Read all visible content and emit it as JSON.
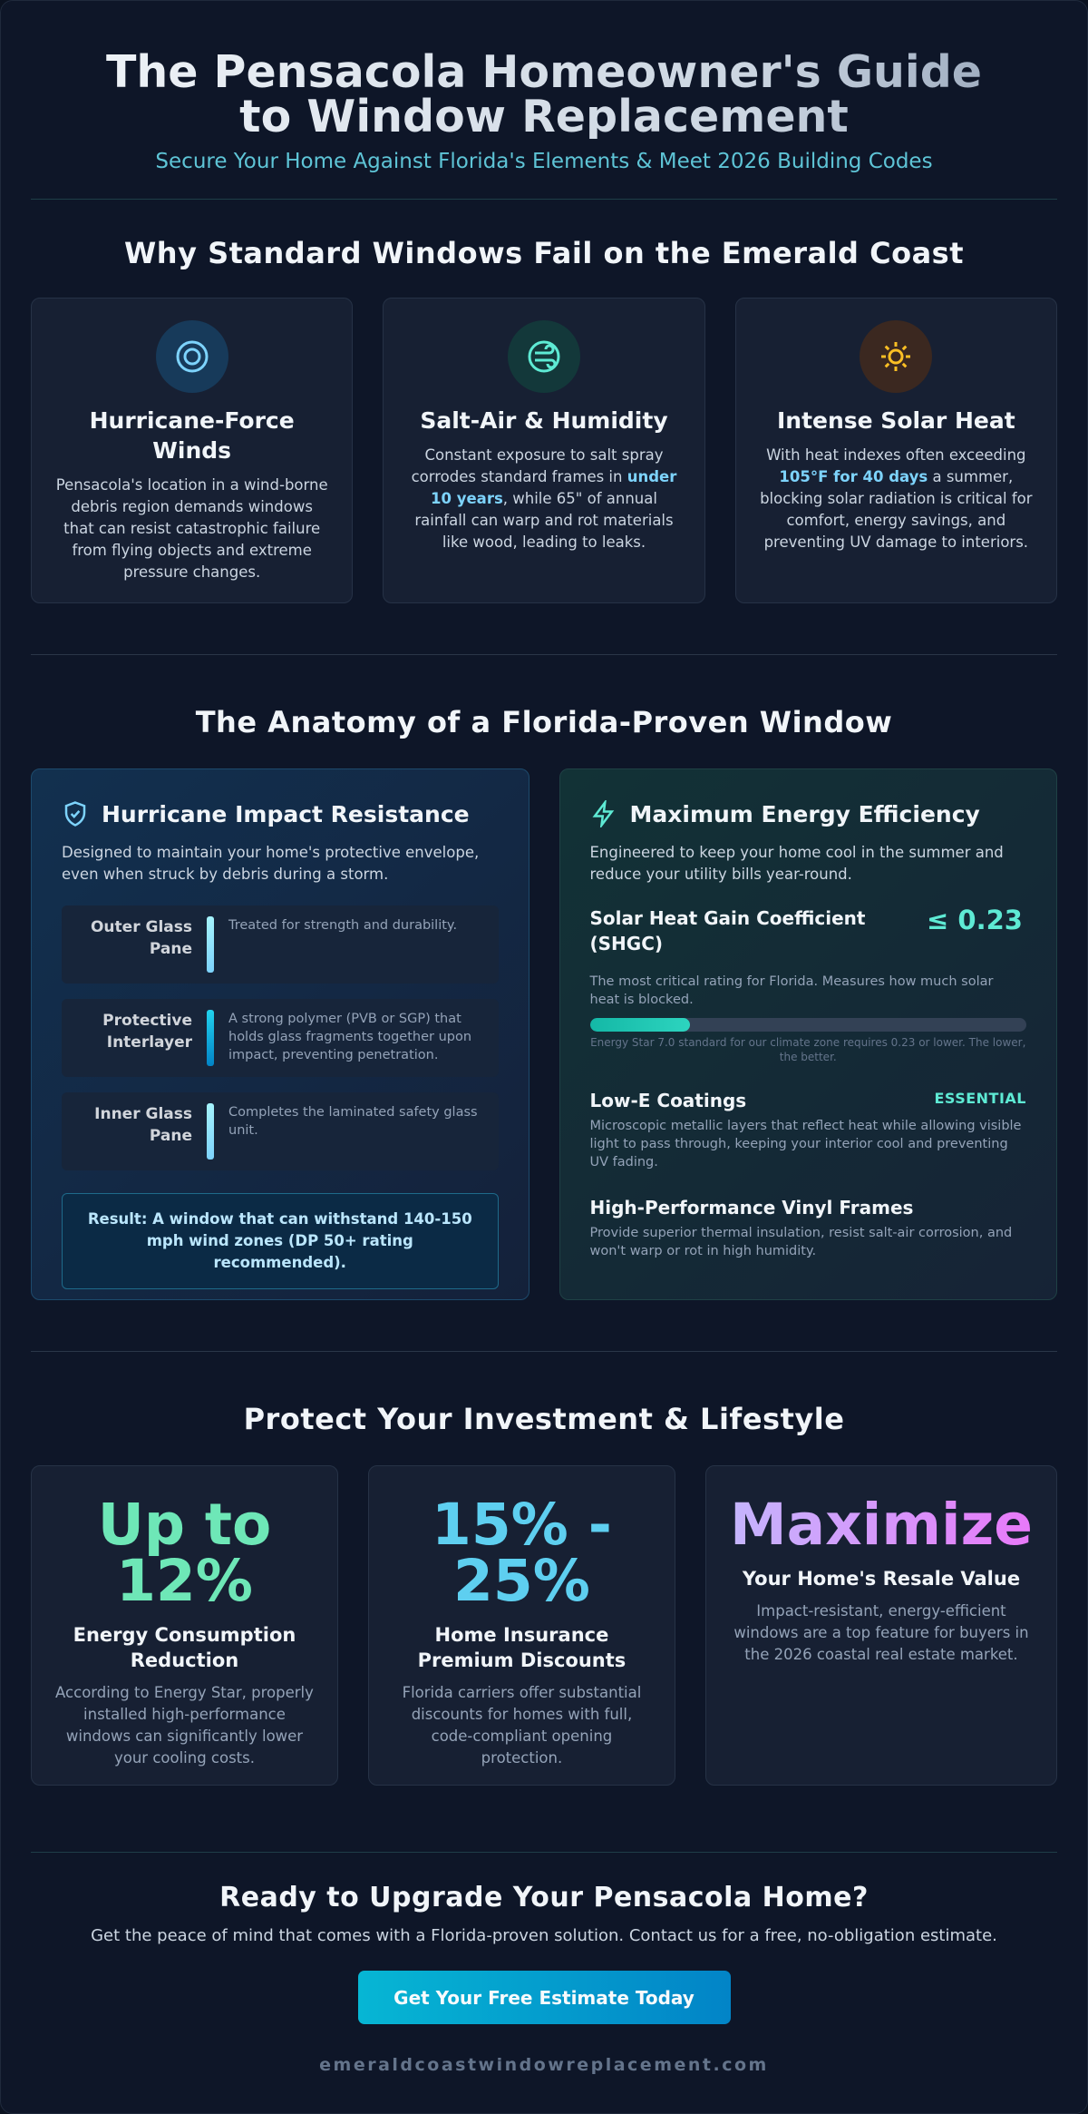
{
  "header": {
    "title": "The Pensacola Homeowner's Guide to Window Replacement",
    "subtitle": "Secure Your Home Against Florida's Elements & Meet 2026 Building Codes"
  },
  "why": {
    "heading": "Why Standard Windows Fail on the Emerald Coast",
    "cards": [
      {
        "title": "Hurricane-Force Winds",
        "body": [
          "Pensacola's location in a wind-borne debris region demands windows that can resist catastrophic failure from flying objects and extreme pressure changes."
        ]
      },
      {
        "title": "Salt-Air & Humidity",
        "body": [
          "Constant exposure to salt spray corrodes standard frames in ",
          "under 10 years",
          ", while 65\" of annual rainfall can warp and rot materials like wood, leading to leaks."
        ]
      },
      {
        "title": "Intense Solar Heat",
        "body": [
          "With heat indexes often exceeding ",
          "105°F for 40 days",
          " a summer, blocking solar radiation is critical for comfort, energy savings, and preventing UV damage to interiors."
        ]
      }
    ]
  },
  "anatomy": {
    "heading": "The Anatomy of a Florida-Proven Window",
    "impact": {
      "title": "Hurricane Impact Resistance",
      "intro": "Designed to maintain your home's protective envelope, even when struck by debris during a storm.",
      "layers": [
        {
          "name": "Outer Glass Pane",
          "desc": "Treated for strength and durability."
        },
        {
          "name": "Protective Interlayer",
          "desc": "A strong polymer (PVB or SGP) that holds glass fragments together upon impact, preventing penetration."
        },
        {
          "name": "Inner Glass Pane",
          "desc": "Completes the laminated safety glass unit."
        }
      ],
      "result": "Result: A window that can withstand 140-150 mph wind zones (DP 50+ rating recommended)."
    },
    "energy": {
      "title": "Maximum Energy Efficiency",
      "intro": "Engineered to keep your home cool in the summer and reduce your utility bills year-round.",
      "shgc": {
        "label": "Solar Heat Gain Coefficient (SHGC)",
        "value": "≤ 0.23",
        "desc": "The most critical rating for Florida. Measures how much solar heat is blocked.",
        "note": "Energy Star 7.0 standard for our climate zone requires 0.23 or lower. The lower, the better."
      },
      "lowe": {
        "label": "Low-E Coatings",
        "badge": "ESSENTIAL",
        "desc": "Microscopic metallic layers that reflect heat while allowing visible light to pass through, keeping your interior cool and preventing UV fading."
      },
      "vinyl": {
        "label": "High-Performance Vinyl Frames",
        "desc": "Provide superior thermal insulation, resist salt-air corrosion, and won't warp or rot in high humidity."
      }
    }
  },
  "invest": {
    "heading": "Protect Your Investment & Lifestyle",
    "cards": [
      {
        "stat": "Up to 12%",
        "title": "Energy Consumption Reduction",
        "body": "According to Energy Star, properly installed high-performance windows can significantly lower your cooling costs."
      },
      {
        "stat": "15% - 25%",
        "title": "Home Insurance Premium Discounts",
        "body": "Florida carriers offer substantial discounts for homes with full, code-compliant opening protection."
      },
      {
        "stat": "Maximize",
        "title": "Your Home's Resale Value",
        "body": "Impact-resistant, energy-efficient windows are a top feature for buyers in the 2026 coastal real estate market."
      }
    ]
  },
  "cta": {
    "heading": "Ready to Upgrade Your Pensacola Home?",
    "text": "Get the peace of mind that comes with a Florida-proven solution. Contact us for a free, no-obligation estimate.",
    "button": "Get Your Free Estimate Today",
    "url": "emeraldcoastwindowreplacement.com"
  }
}
